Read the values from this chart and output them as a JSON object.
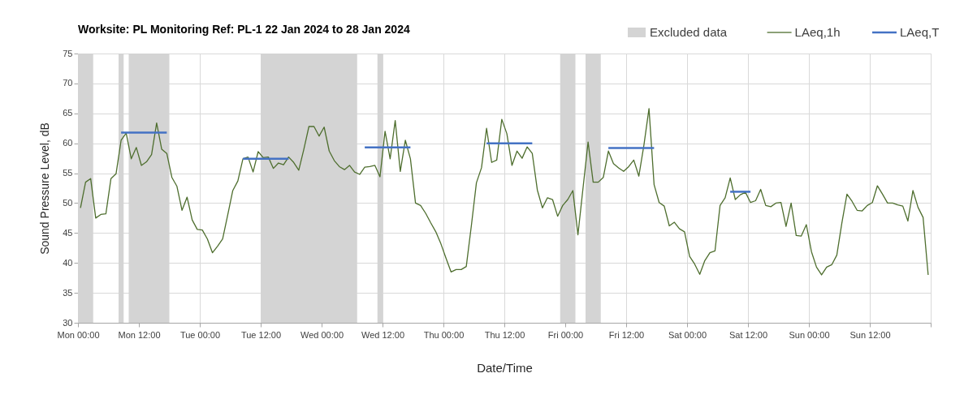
{
  "chart_data": {
    "type": "line",
    "title": "Worksite: PL   Monitoring Ref: PL-1     22 Jan 2024 to 28 Jan 2024",
    "xlabel": "Date/Time",
    "ylabel": "Sound Pressure Level, dB",
    "xlim": [
      "2024-01-22T00:00",
      "2024-01-29T00:00"
    ],
    "ylim": [
      30,
      75
    ],
    "xticks": [
      {
        "value": "2024-01-22T00:00",
        "label": "Mon 00:00"
      },
      {
        "value": "2024-01-22T12:00",
        "label": "Mon 12:00"
      },
      {
        "value": "2024-01-23T00:00",
        "label": "Tue 00:00"
      },
      {
        "value": "2024-01-23T12:00",
        "label": "Tue 12:00"
      },
      {
        "value": "2024-01-24T00:00",
        "label": "Wed 00:00"
      },
      {
        "value": "2024-01-24T12:00",
        "label": "Wed 12:00"
      },
      {
        "value": "2024-01-25T00:00",
        "label": "Thu 00:00"
      },
      {
        "value": "2024-01-25T12:00",
        "label": "Thu 12:00"
      },
      {
        "value": "2024-01-26T00:00",
        "label": "Fri 00:00"
      },
      {
        "value": "2024-01-26T12:00",
        "label": "Fri 12:00"
      },
      {
        "value": "2024-01-27T00:00",
        "label": "Sat 00:00"
      },
      {
        "value": "2024-01-27T12:00",
        "label": "Sat 12:00"
      },
      {
        "value": "2024-01-28T00:00",
        "label": "Sun 00:00"
      },
      {
        "value": "2024-01-28T12:00",
        "label": "Sun 12:00"
      },
      {
        "value": "2024-01-29T00:00",
        "label": null
      }
    ],
    "yticks": [
      30,
      35,
      40,
      45,
      50,
      55,
      60,
      65,
      70,
      75
    ],
    "grid": true,
    "legend": "top right",
    "marker": "none",
    "line_style": "solid",
    "bands": [
      {
        "axis": "x",
        "from": "2024-01-22T00:00",
        "to": "2024-01-22T03:00",
        "label": "Excluded data",
        "color": "#d4d4d4"
      },
      {
        "axis": "x",
        "from": "2024-01-22T08:00",
        "to": "2024-01-22T09:00",
        "color": "#d4d4d4"
      },
      {
        "axis": "x",
        "from": "2024-01-22T10:00",
        "to": "2024-01-22T18:00",
        "color": "#d4d4d4"
      },
      {
        "axis": "x",
        "from": "2024-01-23T12:00",
        "to": "2024-01-24T07:00",
        "color": "#d4d4d4"
      },
      {
        "axis": "x",
        "from": "2024-01-24T11:00",
        "to": "2024-01-24T12:00",
        "color": "#d4d4d4"
      },
      {
        "axis": "x",
        "from": "2024-01-25T23:00",
        "to": "2024-01-26T02:00",
        "color": "#d4d4d4"
      },
      {
        "axis": "x",
        "from": "2024-01-26T04:00",
        "to": "2024-01-26T07:00",
        "color": "#d4d4d4"
      }
    ],
    "series": [
      {
        "name": "LAeq,1h",
        "color": "#4e6e2e",
        "x": [
          "2024-01-22T00:30",
          "2024-01-22T01:30",
          "2024-01-22T02:30",
          "2024-01-22T03:30",
          "2024-01-22T04:30",
          "2024-01-22T05:30",
          "2024-01-22T06:30",
          "2024-01-22T07:30",
          "2024-01-22T08:30",
          "2024-01-22T09:30",
          "2024-01-22T10:30",
          "2024-01-22T11:30",
          "2024-01-22T12:30",
          "2024-01-22T13:30",
          "2024-01-22T14:30",
          "2024-01-22T15:30",
          "2024-01-22T16:30",
          "2024-01-22T17:30",
          "2024-01-22T18:30",
          "2024-01-22T19:30",
          "2024-01-22T20:30",
          "2024-01-22T21:30",
          "2024-01-22T22:30",
          "2024-01-22T23:30",
          "2024-01-23T00:30",
          "2024-01-23T01:30",
          "2024-01-23T02:30",
          "2024-01-23T03:30",
          "2024-01-23T04:30",
          "2024-01-23T05:30",
          "2024-01-23T06:30",
          "2024-01-23T07:30",
          "2024-01-23T08:30",
          "2024-01-23T09:30",
          "2024-01-23T10:30",
          "2024-01-23T11:30",
          "2024-01-23T12:30",
          "2024-01-23T13:30",
          "2024-01-23T14:30",
          "2024-01-23T15:30",
          "2024-01-23T16:30",
          "2024-01-23T17:30",
          "2024-01-23T18:30",
          "2024-01-23T19:30",
          "2024-01-23T20:30",
          "2024-01-23T21:30",
          "2024-01-23T22:30",
          "2024-01-23T23:30",
          "2024-01-24T00:30",
          "2024-01-24T01:30",
          "2024-01-24T02:30",
          "2024-01-24T03:30",
          "2024-01-24T04:30",
          "2024-01-24T05:30",
          "2024-01-24T06:30",
          "2024-01-24T07:30",
          "2024-01-24T08:30",
          "2024-01-24T09:30",
          "2024-01-24T10:30",
          "2024-01-24T11:30",
          "2024-01-24T12:30",
          "2024-01-24T13:30",
          "2024-01-24T14:30",
          "2024-01-24T15:30",
          "2024-01-24T16:30",
          "2024-01-24T17:30",
          "2024-01-24T18:30",
          "2024-01-24T19:30",
          "2024-01-24T20:30",
          "2024-01-24T21:30",
          "2024-01-24T22:30",
          "2024-01-24T23:30",
          "2024-01-25T00:30",
          "2024-01-25T01:30",
          "2024-01-25T02:30",
          "2024-01-25T03:30",
          "2024-01-25T04:30",
          "2024-01-25T05:30",
          "2024-01-25T06:30",
          "2024-01-25T07:30",
          "2024-01-25T08:30",
          "2024-01-25T09:30",
          "2024-01-25T10:30",
          "2024-01-25T11:30",
          "2024-01-25T12:30",
          "2024-01-25T13:30",
          "2024-01-25T14:30",
          "2024-01-25T15:30",
          "2024-01-25T16:30",
          "2024-01-25T17:30",
          "2024-01-25T18:30",
          "2024-01-25T19:30",
          "2024-01-25T20:30",
          "2024-01-25T21:30",
          "2024-01-25T22:30",
          "2024-01-25T23:30",
          "2024-01-26T00:30",
          "2024-01-26T01:30",
          "2024-01-26T02:30",
          "2024-01-26T03:30",
          "2024-01-26T04:30",
          "2024-01-26T05:30",
          "2024-01-26T06:30",
          "2024-01-26T07:30",
          "2024-01-26T08:30",
          "2024-01-26T09:30",
          "2024-01-26T10:30",
          "2024-01-26T11:30",
          "2024-01-26T12:30",
          "2024-01-26T13:30",
          "2024-01-26T14:30",
          "2024-01-26T15:30",
          "2024-01-26T16:30",
          "2024-01-26T17:30",
          "2024-01-26T18:30",
          "2024-01-26T19:30",
          "2024-01-26T20:30",
          "2024-01-26T21:30",
          "2024-01-26T22:30",
          "2024-01-26T23:30",
          "2024-01-27T00:30",
          "2024-01-27T01:30",
          "2024-01-27T02:30",
          "2024-01-27T03:30",
          "2024-01-27T04:30",
          "2024-01-27T05:30",
          "2024-01-27T06:30",
          "2024-01-27T07:30",
          "2024-01-27T08:30",
          "2024-01-27T09:30",
          "2024-01-27T10:30",
          "2024-01-27T11:30",
          "2024-01-27T12:30",
          "2024-01-27T13:30",
          "2024-01-27T14:30",
          "2024-01-27T15:30",
          "2024-01-27T16:30",
          "2024-01-27T17:30",
          "2024-01-27T18:30",
          "2024-01-27T19:30",
          "2024-01-27T20:30",
          "2024-01-27T21:30",
          "2024-01-27T22:30",
          "2024-01-27T23:30",
          "2024-01-28T00:30",
          "2024-01-28T01:30",
          "2024-01-28T02:30",
          "2024-01-28T03:30",
          "2024-01-28T04:30",
          "2024-01-28T05:30",
          "2024-01-28T06:30",
          "2024-01-28T07:30",
          "2024-01-28T08:30",
          "2024-01-28T09:30",
          "2024-01-28T10:30",
          "2024-01-28T11:30",
          "2024-01-28T12:30",
          "2024-01-28T13:30",
          "2024-01-28T14:30",
          "2024-01-28T15:30",
          "2024-01-28T16:30",
          "2024-01-28T17:30",
          "2024-01-28T18:30",
          "2024-01-28T19:30",
          "2024-01-28T20:30",
          "2024-01-28T21:30",
          "2024-01-28T22:30",
          "2024-01-28T23:30"
        ],
        "values": [
          49.2,
          53.5,
          54.1,
          47.5,
          48.1,
          48.2,
          54.1,
          54.9,
          60.5,
          61.7,
          57.4,
          59.3,
          56.3,
          56.9,
          58.1,
          63.4,
          59.0,
          58.3,
          54.3,
          52.8,
          48.8,
          51.0,
          47.2,
          45.6,
          45.5,
          44.0,
          41.7,
          42.8,
          44.0,
          48.0,
          52.1,
          53.7,
          57.4,
          57.7,
          55.2,
          58.6,
          57.6,
          57.7,
          55.8,
          56.7,
          56.4,
          57.7,
          56.8,
          55.5,
          59.0,
          62.8,
          62.8,
          61.2,
          62.7,
          58.7,
          57.1,
          56.1,
          55.6,
          56.3,
          55.2,
          54.8,
          56.0,
          56.1,
          56.3,
          54.4,
          62.0,
          57.4,
          63.8,
          55.3,
          60.5,
          57.4,
          50.0,
          49.6,
          48.3,
          46.7,
          45.2,
          43.2,
          40.8,
          38.5,
          38.9,
          38.9,
          39.4,
          46.2,
          53.4,
          55.9,
          62.5,
          56.8,
          57.2,
          64.0,
          61.6,
          56.3,
          58.7,
          57.5,
          59.4,
          58.3,
          52.2,
          49.2,
          50.9,
          50.6,
          47.8,
          49.6,
          50.6,
          52.1,
          44.7,
          52.5,
          60.2,
          53.5,
          53.5,
          54.3,
          58.7,
          56.6,
          55.9,
          55.3,
          56.1,
          57.2,
          54.5,
          59.7,
          65.8,
          53.1,
          50.1,
          49.5,
          46.2,
          46.8,
          45.7,
          45.2,
          41.1,
          39.8,
          38.1,
          40.4,
          41.7,
          42.0,
          49.6,
          50.9,
          54.2,
          50.6,
          51.4,
          51.8,
          50.1,
          50.4,
          52.3,
          49.6,
          49.4,
          50.0,
          50.1,
          46.1,
          50.0,
          44.6,
          44.5,
          46.4,
          41.9,
          39.3,
          38.0,
          39.3,
          39.7,
          41.3,
          46.7,
          51.5,
          50.3,
          48.8,
          48.7,
          49.6,
          50.1,
          52.9,
          51.5,
          50.0,
          50.0,
          49.7,
          49.5,
          47.0,
          52.1,
          49.3,
          47.6,
          38.0
        ]
      },
      {
        "name": "LAeq,T",
        "color": "#4472c4",
        "x": [
          "2024-01-22T08:30",
          "2024-01-22T17:30",
          "2024-01-23T01:00",
          "2024-01-23T08:30",
          "2024-01-23T17:30",
          "2024-01-24T01:00",
          "2024-01-24T08:30",
          "2024-01-24T17:30",
          "2024-01-25T01:00",
          "2024-01-25T08:30",
          "2024-01-25T17:30",
          "2024-01-26T01:00",
          "2024-01-26T08:30",
          "2024-01-26T17:30",
          "2024-01-27T01:00",
          "2024-01-27T08:30",
          "2024-01-27T12:30"
        ],
        "values": [
          61.8,
          61.8,
          null,
          57.4,
          57.4,
          null,
          59.3,
          59.3,
          null,
          60.0,
          60.0,
          null,
          59.2,
          59.2,
          null,
          51.9,
          51.9
        ]
      }
    ]
  }
}
